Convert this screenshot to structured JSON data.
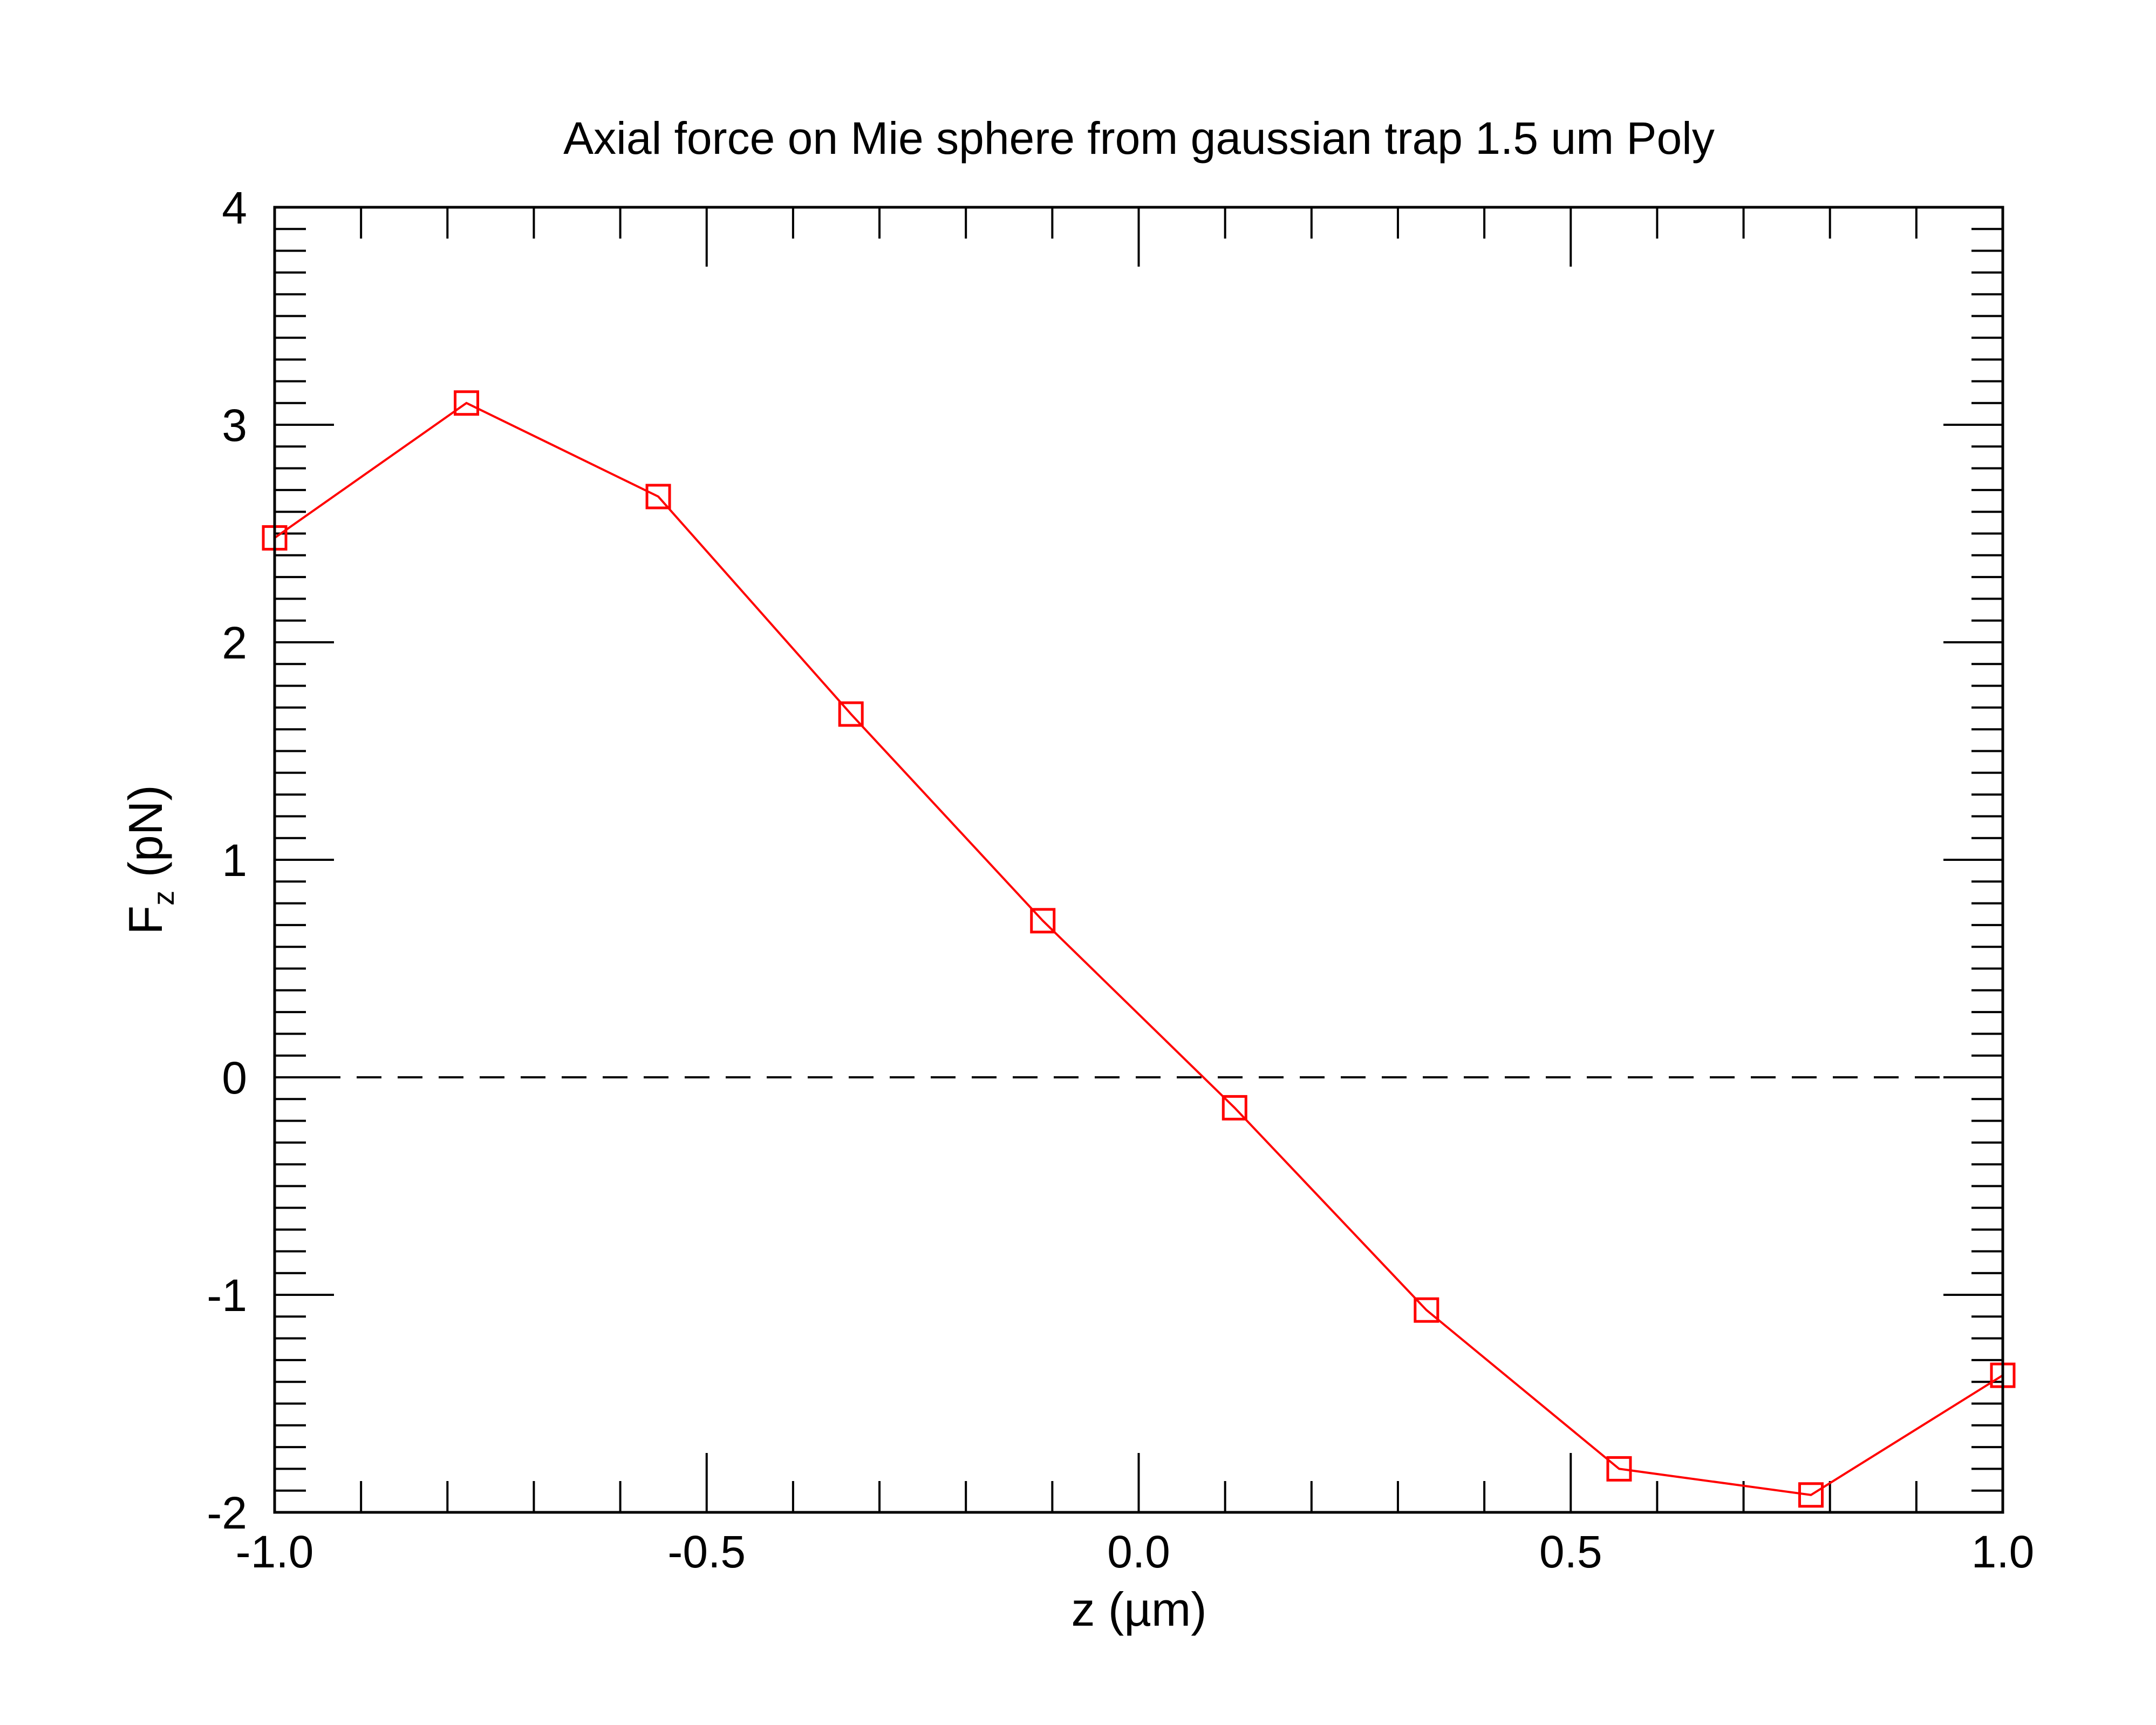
{
  "chart_data": {
    "type": "line",
    "title": "Axial force on Mie sphere from gaussian trap 1.5 um Poly",
    "xlabel": "z (µm)",
    "ylabel_main": "F",
    "ylabel_sub": "z",
    "ylabel_unit": " (pN)",
    "xlim": [
      -1.0,
      1.0
    ],
    "ylim": [
      -2,
      4
    ],
    "x_ticks": [
      {
        "value": -1.0,
        "label": "-1.0"
      },
      {
        "value": -0.5,
        "label": "-0.5"
      },
      {
        "value": 0.0,
        "label": "0.0"
      },
      {
        "value": 0.5,
        "label": "0.5"
      },
      {
        "value": 1.0,
        "label": "1.0"
      }
    ],
    "y_ticks": [
      {
        "value": -2,
        "label": "-2"
      },
      {
        "value": -1,
        "label": "-1"
      },
      {
        "value": 0,
        "label": "0"
      },
      {
        "value": 1,
        "label": "1"
      },
      {
        "value": 2,
        "label": "2"
      },
      {
        "value": 3,
        "label": "3"
      },
      {
        "value": 4,
        "label": "4"
      }
    ],
    "grid": false,
    "reference_line": {
      "y": 0,
      "style": "dashed",
      "color": "#000000"
    },
    "series": [
      {
        "color": "#ff0000",
        "marker": "open-square",
        "x": [
          -1.0,
          -0.778,
          -0.556,
          -0.333,
          -0.111,
          0.111,
          0.333,
          0.556,
          0.778,
          1.0
        ],
        "y": [
          2.48,
          3.1,
          2.67,
          1.67,
          0.72,
          -0.14,
          -1.07,
          -1.8,
          -1.92,
          -1.37
        ]
      }
    ]
  }
}
